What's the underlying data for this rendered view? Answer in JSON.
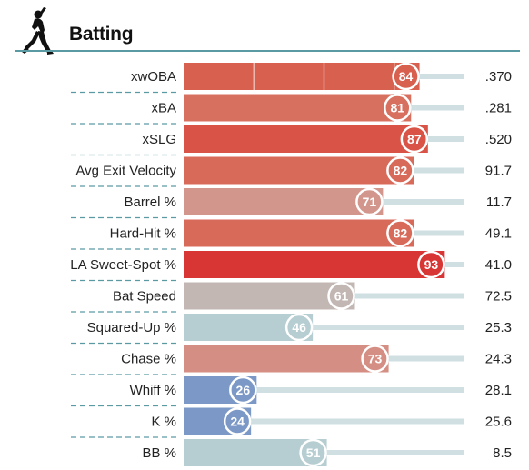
{
  "header": {
    "title": "Batting",
    "icon": "baseball-batter-icon"
  },
  "chart_data": {
    "type": "bar",
    "orientation": "horizontal",
    "xlim": [
      0,
      100
    ],
    "rows": [
      {
        "label": "xwOBA",
        "percentile": 84,
        "value": ".370",
        "color": "#d8604f"
      },
      {
        "label": "xBA",
        "percentile": 81,
        "value": ".281",
        "color": "#d8705f"
      },
      {
        "label": "xSLG",
        "percentile": 87,
        "value": ".520",
        "color": "#d95446"
      },
      {
        "label": "Avg Exit Velocity",
        "percentile": 82,
        "value": "91.7",
        "color": "#d86a5a"
      },
      {
        "label": "Barrel %",
        "percentile": 71,
        "value": "11.7",
        "color": "#d2968c"
      },
      {
        "label": "Hard-Hit %",
        "percentile": 82,
        "value": "49.1",
        "color": "#d86a5a"
      },
      {
        "label": "LA Sweet-Spot %",
        "percentile": 93,
        "value": "41.0",
        "color": "#d83535"
      },
      {
        "label": "Bat Speed",
        "percentile": 61,
        "value": "72.5",
        "color": "#c3b7b4"
      },
      {
        "label": "Squared-Up %",
        "percentile": 46,
        "value": "25.3",
        "color": "#b6cdd1"
      },
      {
        "label": "Chase %",
        "percentile": 73,
        "value": "24.3",
        "color": "#d48e83"
      },
      {
        "label": "Whiff %",
        "percentile": 26,
        "value": "28.1",
        "color": "#7c98c6"
      },
      {
        "label": "K %",
        "percentile": 24,
        "value": "25.6",
        "color": "#7c98c6"
      },
      {
        "label": "BB %",
        "percentile": 51,
        "value": "8.5",
        "color": "#b6cdd1"
      }
    ],
    "colors": {
      "track": "#cfdfe2",
      "dashed_separator": "#5a9aa3",
      "center_line": "#ffffff"
    }
  }
}
